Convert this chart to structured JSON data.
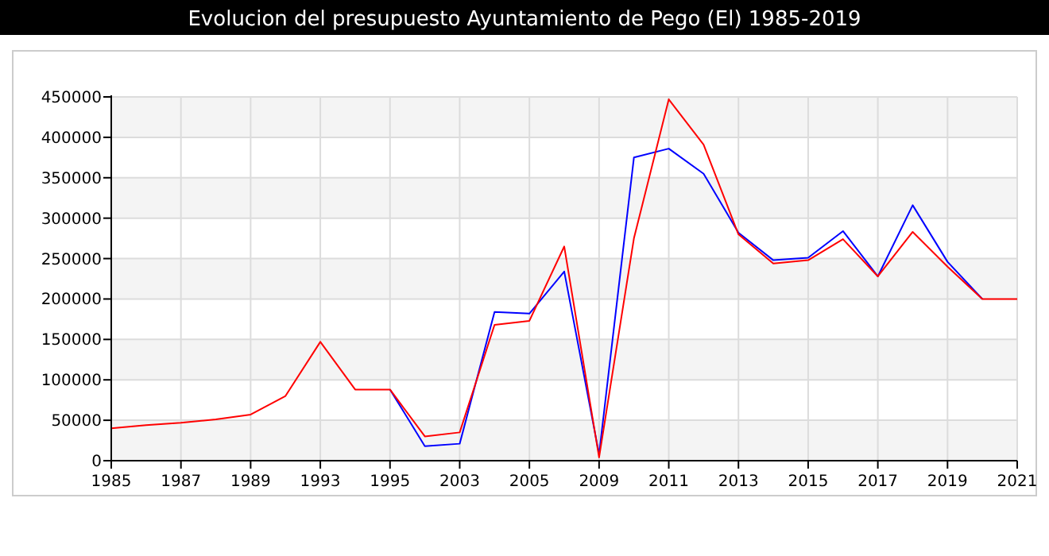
{
  "chart_data": {
    "type": "line",
    "title": "Evolucion del presupuesto Ayuntamiento de Pego (El) 1985-2019",
    "categories": [
      "1985",
      null,
      "1987",
      null,
      "1989",
      null,
      "1993",
      null,
      "1995",
      null,
      "2003",
      null,
      "2005",
      null,
      "2009",
      null,
      "2011",
      null,
      "2013",
      null,
      "2015",
      null,
      "2017",
      null,
      "2019",
      null,
      "2021"
    ],
    "series": [
      {
        "color": "#0000ff",
        "values": [
          null,
          null,
          null,
          null,
          null,
          null,
          null,
          null,
          88000,
          18000,
          21000,
          184000,
          182000,
          234000,
          8000,
          375000,
          386000,
          355000,
          282000,
          248000,
          251000,
          284000,
          228000,
          316000,
          246000,
          200000,
          null
        ]
      },
      {
        "color": "#ff0000",
        "values": [
          40000,
          44000,
          47000,
          51000,
          57000,
          80000,
          147000,
          88000,
          88000,
          30000,
          35000,
          168000,
          173000,
          265000,
          4000,
          275000,
          447000,
          391000,
          280000,
          244000,
          248000,
          274000,
          228000,
          283000,
          240000,
          200000,
          200000
        ]
      }
    ],
    "ylim": [
      0,
      450000
    ],
    "yticks": [
      0,
      50000,
      100000,
      150000,
      200000,
      250000,
      300000,
      350000,
      400000,
      450000
    ],
    "grid": true
  }
}
